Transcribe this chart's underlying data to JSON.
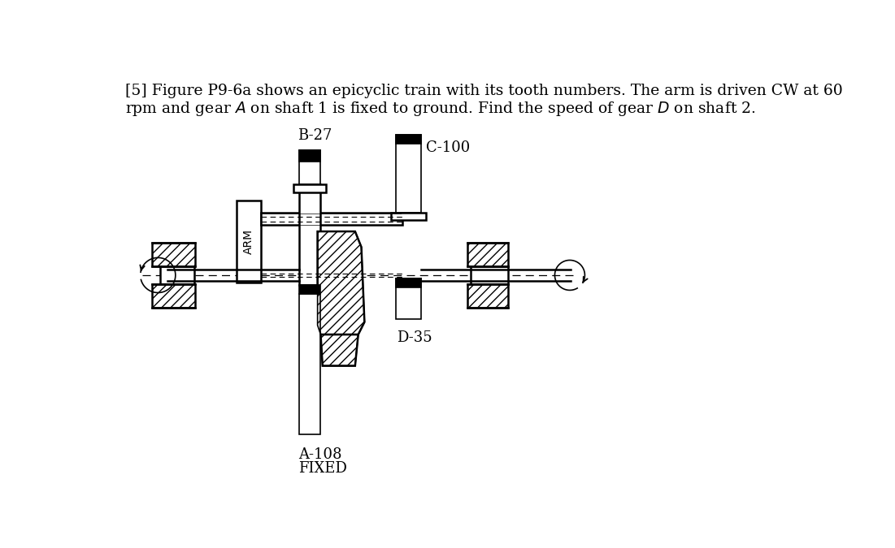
{
  "label_B": "B-27",
  "label_C": "C-100",
  "label_D": "D-35",
  "label_A": "A-108",
  "label_fixed": "FIXED",
  "label_arm": "ARM",
  "bg_color": "#ffffff",
  "line_color": "#000000",
  "fig_width": 11.01,
  "fig_height": 6.75,
  "dpi": 100,
  "text_line1": "[5] Figure P9-6a shows an epicyclic train with its tooth numbers. The arm is driven CW at 60",
  "text_line2": "rpm and gear $A$ on shaft 1 is fixed to ground. Find the speed of gear $D$ on shaft 2."
}
